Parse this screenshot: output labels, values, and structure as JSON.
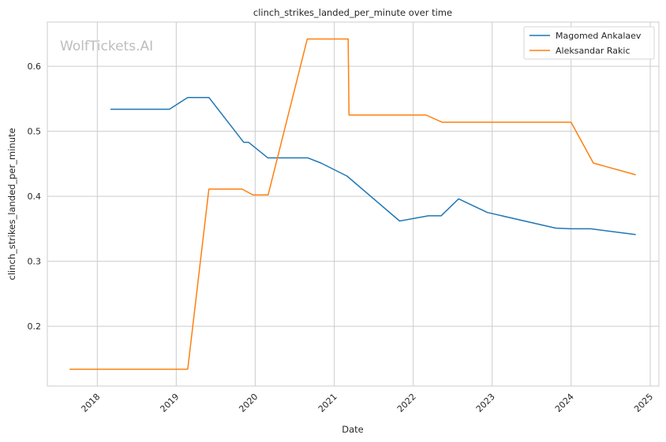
{
  "chart_data": {
    "type": "line",
    "title": "clinch_strikes_landed_per_minute over time",
    "xlabel": "Date",
    "ylabel": "clinch_strikes_landed_per_minute",
    "watermark": "WolfTickets.AI",
    "x_ticks": [
      "2018",
      "2019",
      "2020",
      "2021",
      "2022",
      "2023",
      "2024",
      "2025"
    ],
    "y_ticks": [
      "0.2",
      "0.3",
      "0.4",
      "0.5",
      "0.6"
    ],
    "xlim": [
      "2017-05-15",
      "2025-02-10"
    ],
    "ylim": [
      0.108,
      0.668
    ],
    "grid": true,
    "legend_position": "top-right",
    "series": [
      {
        "name": "Magomed Ankalaev",
        "color": "#1f77b4",
        "points": [
          [
            "2018-03-03",
            0.534
          ],
          [
            "2018-12-01",
            0.534
          ],
          [
            "2019-02-23",
            0.552
          ],
          [
            "2019-06-01",
            0.552
          ],
          [
            "2019-11-09",
            0.483
          ],
          [
            "2019-12-01",
            0.483
          ],
          [
            "2020-02-29",
            0.459
          ],
          [
            "2020-09-01",
            0.459
          ],
          [
            "2020-11-01",
            0.451
          ],
          [
            "2021-03-01",
            0.431
          ],
          [
            "2021-10-30",
            0.362
          ],
          [
            "2022-03-12",
            0.37
          ],
          [
            "2022-05-10",
            0.37
          ],
          [
            "2022-07-30",
            0.396
          ],
          [
            "2022-12-10",
            0.375
          ],
          [
            "2023-10-21",
            0.351
          ],
          [
            "2024-01-01",
            0.35
          ],
          [
            "2024-04-01",
            0.35
          ],
          [
            "2024-10-26",
            0.341
          ]
        ]
      },
      {
        "name": "Aleksandar Rakic",
        "color": "#ff7f0e",
        "points": [
          [
            "2017-08-26",
            0.134
          ],
          [
            "2019-02-23",
            0.134
          ],
          [
            "2019-06-01",
            0.411
          ],
          [
            "2019-11-02",
            0.411
          ],
          [
            "2019-12-21",
            0.402
          ],
          [
            "2020-03-01",
            0.402
          ],
          [
            "2020-08-29",
            0.642
          ],
          [
            "2021-03-06",
            0.642
          ],
          [
            "2021-03-10",
            0.525
          ],
          [
            "2022-03-01",
            0.525
          ],
          [
            "2022-05-14",
            0.514
          ],
          [
            "2024-01-01",
            0.514
          ],
          [
            "2024-04-13",
            0.451
          ],
          [
            "2024-10-26",
            0.433
          ]
        ]
      }
    ]
  }
}
